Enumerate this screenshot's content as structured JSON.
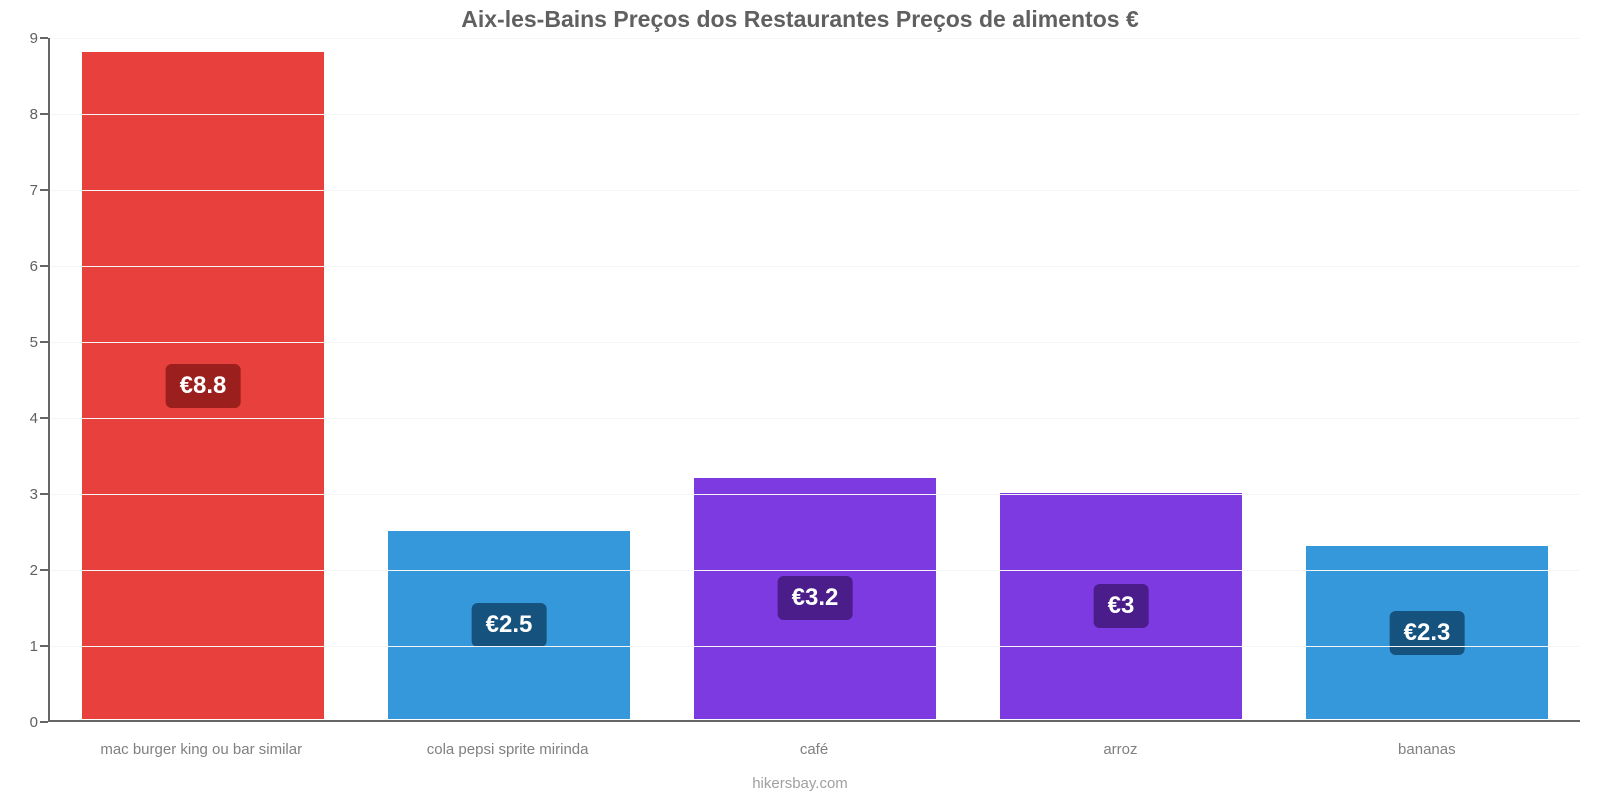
{
  "chart": {
    "type": "bar",
    "title": "Aix-les-Bains Preços dos Restaurantes Preços de alimentos €",
    "title_fontsize": 23,
    "title_color": "#606060",
    "attribution": "hikersbay.com",
    "attribution_fontsize": 15,
    "attribution_color": "#a0a0a0",
    "background_color": "#ffffff",
    "axis_color": "#666666",
    "grid_color": "#f5f5f5",
    "ytick_color": "#606060",
    "xtick_color": "#808080",
    "ytick_fontsize": 15,
    "xtick_fontsize": 15,
    "value_label_fontsize": 24,
    "bar_width": 0.8,
    "y": {
      "min": 0,
      "max": 9,
      "ticks": [
        0,
        1,
        2,
        3,
        4,
        5,
        6,
        7,
        8,
        9
      ]
    },
    "categories": [
      "mac burger king ou bar similar",
      "cola pepsi sprite mirinda",
      "café",
      "arroz",
      "bananas"
    ],
    "values": [
      8.8,
      2.5,
      3.2,
      3.0,
      2.3
    ],
    "display_values": [
      "€8.8",
      "€2.5",
      "€3.2",
      "€3",
      "€2.3"
    ],
    "bar_colors": [
      "#e8403c",
      "#3498db",
      "#7c3ae0",
      "#7c3ae0",
      "#3498db"
    ],
    "badge_colors": [
      "#9b1f1c",
      "#15537e",
      "#4a1d8a",
      "#4a1d8a",
      "#15537e"
    ]
  }
}
